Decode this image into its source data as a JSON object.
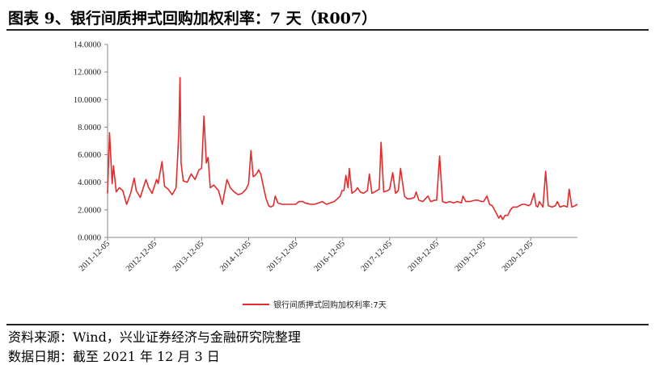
{
  "header": {
    "title": "图表 9、银行间质押式回购加权利率：7 天（R007）"
  },
  "footer": {
    "source": "资料来源：Wind，兴业证券经济与金融研究院整理",
    "date": "数据日期：截至 2021 年 12 月 3 日"
  },
  "colors": {
    "series": "#e32b2b",
    "axis": "#888888",
    "text": "#222222"
  },
  "chart_data": {
    "type": "line",
    "title": "",
    "xlabel": "",
    "ylabel": "",
    "ylim": [
      0,
      14
    ],
    "y_ticks": [
      "0.0000",
      "2.0000",
      "4.0000",
      "6.0000",
      "8.0000",
      "10.0000",
      "12.0000",
      "14.0000"
    ],
    "x_ticks": [
      "2011-12-05",
      "2012-12-05",
      "2013-12-05",
      "2014-12-05",
      "2015-12-05",
      "2016-12-05",
      "2017-12-05",
      "2018-12-05",
      "2019-12-05",
      "2020-12-05"
    ],
    "x_range": [
      "2011-12-05",
      "2021-12-03"
    ],
    "grid": false,
    "legend_position": "bottom",
    "series": [
      {
        "name": "银行间质押式回购加权利率:7天",
        "x": [
          "2011-12-05",
          "2011-12-20",
          "2012-01-10",
          "2012-01-20",
          "2012-02-10",
          "2012-03-05",
          "2012-04-01",
          "2012-05-01",
          "2012-06-01",
          "2012-06-29",
          "2012-07-15",
          "2012-08-15",
          "2012-09-28",
          "2012-10-20",
          "2012-11-15",
          "2012-12-20",
          "2013-01-01",
          "2013-01-31",
          "2013-02-20",
          "2013-03-20",
          "2013-04-20",
          "2013-05-20",
          "2013-06-10",
          "2013-06-20",
          "2013-06-28",
          "2013-07-15",
          "2013-08-15",
          "2013-09-15",
          "2013-10-15",
          "2013-11-15",
          "2013-12-05",
          "2013-12-23",
          "2014-01-10",
          "2014-01-24",
          "2014-02-10",
          "2014-03-10",
          "2014-04-15",
          "2014-05-15",
          "2014-06-20",
          "2014-07-15",
          "2014-08-15",
          "2014-09-15",
          "2014-10-15",
          "2014-11-15",
          "2014-12-05",
          "2014-12-23",
          "2015-01-10",
          "2015-01-25",
          "2015-02-10",
          "2015-02-20",
          "2015-03-10",
          "2015-04-01",
          "2015-04-20",
          "2015-05-10",
          "2015-05-25",
          "2015-06-15",
          "2015-06-30",
          "2015-07-20",
          "2015-08-20",
          "2015-09-30",
          "2015-10-20",
          "2015-12-05",
          "2015-12-31",
          "2016-01-31",
          "2016-02-15",
          "2016-03-31",
          "2016-05-01",
          "2016-06-30",
          "2016-08-01",
          "2016-09-01",
          "2016-09-30",
          "2016-10-25",
          "2016-11-15",
          "2016-11-30",
          "2016-12-15",
          "2016-12-30",
          "2017-01-15",
          "2017-01-25",
          "2017-02-15",
          "2017-03-15",
          "2017-03-31",
          "2017-04-20",
          "2017-05-15",
          "2017-06-15",
          "2017-06-30",
          "2017-07-20",
          "2017-08-10",
          "2017-09-15",
          "2017-09-29",
          "2017-10-20",
          "2017-11-20",
          "2017-12-05",
          "2017-12-29",
          "2018-01-20",
          "2018-02-10",
          "2018-02-28",
          "2018-03-30",
          "2018-04-20",
          "2018-05-15",
          "2018-06-15",
          "2018-06-29",
          "2018-07-20",
          "2018-08-20",
          "2018-09-28",
          "2018-10-20",
          "2018-11-20",
          "2018-12-05",
          "2018-12-28",
          "2019-01-20",
          "2019-02-15",
          "2019-03-15",
          "2019-04-15",
          "2019-05-15",
          "2019-06-15",
          "2019-06-28",
          "2019-07-20",
          "2019-08-20",
          "2019-09-30",
          "2019-10-20",
          "2019-11-20",
          "2019-12-05",
          "2019-12-31",
          "2020-01-20",
          "2020-02-10",
          "2020-03-10",
          "2020-04-01",
          "2020-04-15",
          "2020-05-01",
          "2020-05-20",
          "2020-06-10",
          "2020-06-30",
          "2020-07-20",
          "2020-08-20",
          "2020-09-30",
          "2020-10-20",
          "2020-11-20",
          "2020-12-05",
          "2020-12-31",
          "2021-01-15",
          "2021-01-29",
          "2021-02-10",
          "2021-03-10",
          "2021-03-31",
          "2021-04-20",
          "2021-05-20",
          "2021-06-15",
          "2021-06-30",
          "2021-07-20",
          "2021-08-20",
          "2021-09-15",
          "2021-09-30",
          "2021-10-20",
          "2021-11-15",
          "2021-12-03"
        ],
        "y": [
          3.2,
          7.6,
          3.9,
          5.2,
          3.3,
          3.6,
          3.4,
          2.4,
          3.2,
          4.3,
          3.4,
          2.9,
          4.2,
          3.6,
          3.2,
          4.2,
          3.9,
          5.5,
          3.7,
          3.5,
          3.1,
          3.6,
          7.4,
          11.6,
          5.4,
          4.1,
          4.0,
          4.6,
          4.2,
          4.9,
          5.0,
          8.8,
          5.4,
          5.8,
          3.6,
          3.8,
          3.4,
          2.4,
          4.2,
          3.6,
          3.3,
          3.1,
          3.2,
          3.5,
          3.9,
          6.3,
          4.4,
          4.5,
          4.7,
          4.9,
          4.6,
          3.6,
          2.8,
          2.3,
          2.2,
          2.3,
          3.0,
          2.5,
          2.4,
          2.4,
          2.4,
          2.4,
          2.6,
          2.6,
          2.5,
          2.4,
          2.4,
          2.6,
          2.4,
          2.5,
          2.6,
          2.8,
          3.0,
          3.4,
          3.4,
          4.5,
          3.6,
          5.0,
          3.2,
          3.4,
          3.6,
          3.3,
          3.2,
          3.4,
          4.6,
          3.2,
          3.3,
          3.5,
          6.9,
          3.3,
          3.4,
          3.5,
          4.7,
          3.2,
          3.4,
          5.0,
          3.0,
          2.8,
          2.8,
          2.9,
          3.3,
          2.7,
          2.6,
          3.0,
          2.6,
          2.7,
          2.7,
          5.9,
          2.6,
          2.5,
          2.6,
          2.5,
          2.6,
          2.5,
          3.0,
          2.6,
          2.6,
          2.7,
          2.7,
          2.6,
          2.6,
          3.0,
          2.4,
          2.3,
          1.8,
          1.4,
          1.6,
          1.3,
          1.6,
          1.6,
          2.0,
          2.2,
          2.2,
          2.4,
          2.4,
          2.3,
          2.4,
          3.2,
          2.3,
          2.2,
          2.6,
          2.2,
          4.8,
          2.3,
          2.2,
          2.3,
          2.6,
          2.2,
          2.3,
          2.2,
          3.5,
          2.2,
          2.3,
          2.4
        ]
      }
    ]
  }
}
